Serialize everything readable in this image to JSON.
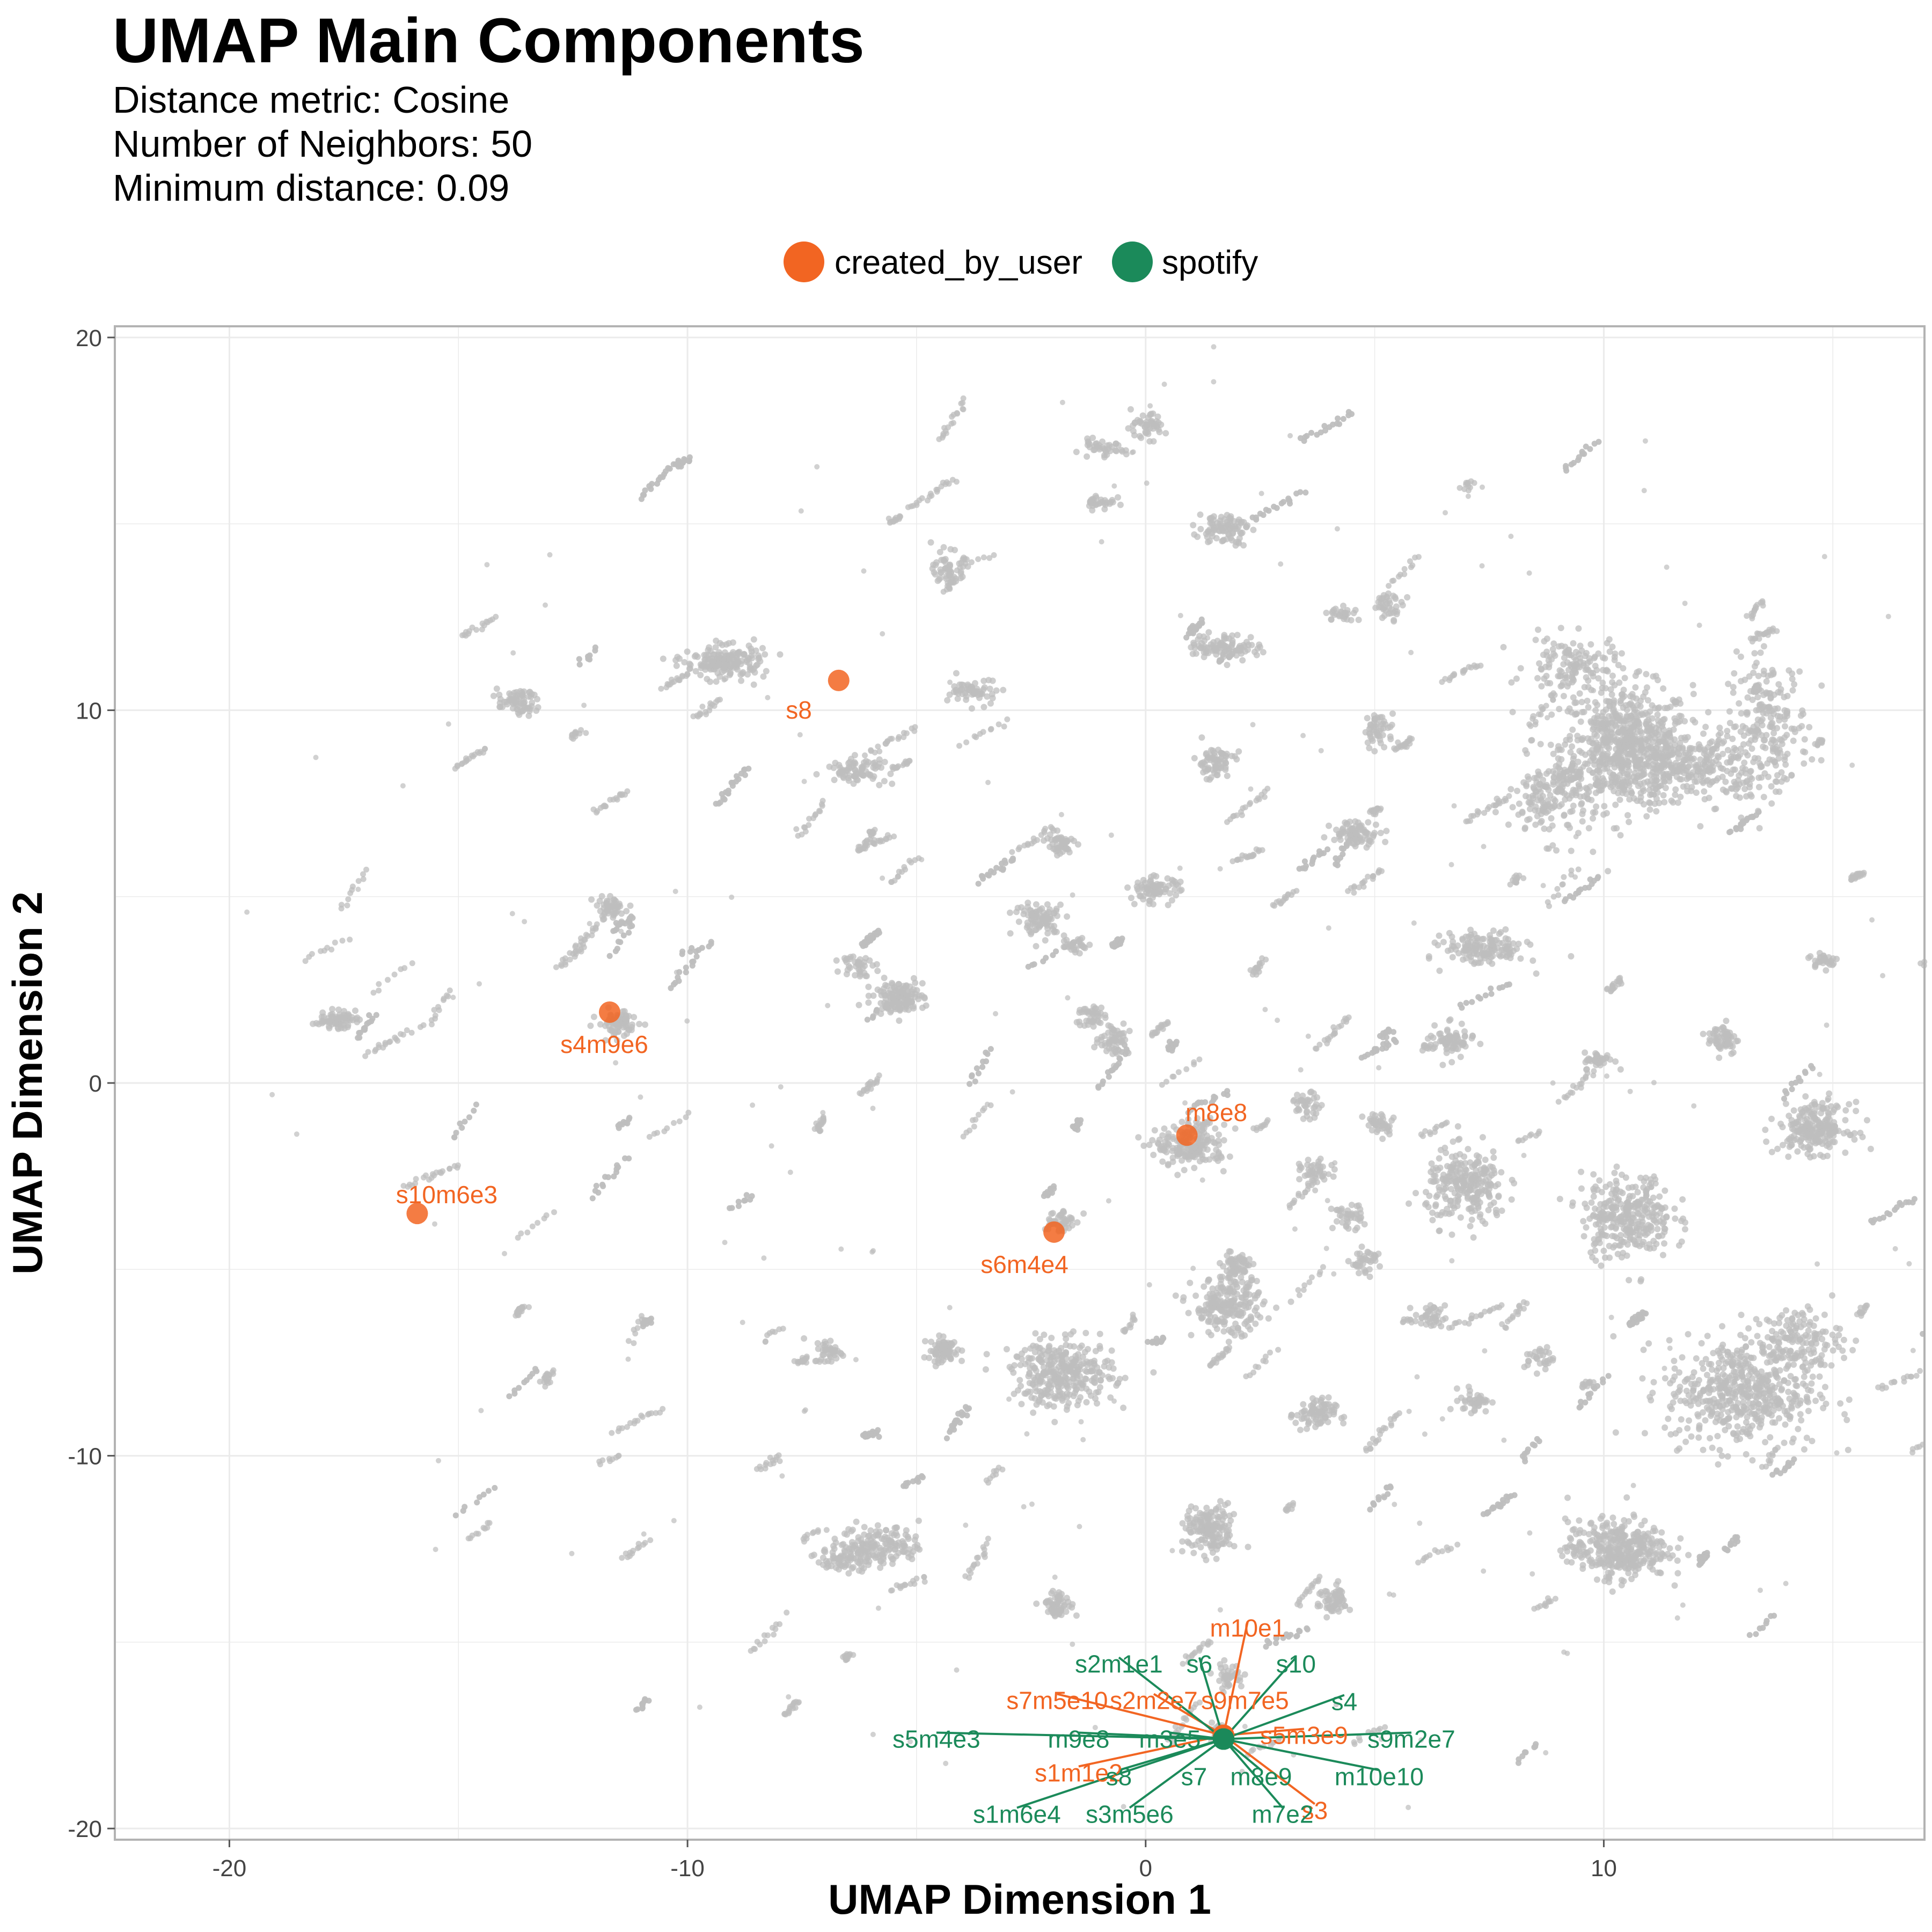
{
  "chart_data": {
    "type": "scatter",
    "title": "UMAP Main Components",
    "subtitle": [
      "Distance metric: Cosine",
      "Number of Neighbors: 50",
      "Minimum distance: 0.09"
    ],
    "xlabel": "UMAP Dimension 1",
    "ylabel": "UMAP Dimension 2",
    "xlim": [
      -22.5,
      17
    ],
    "ylim": [
      -20.3,
      20.3
    ],
    "xticks": [
      -20,
      -10,
      0,
      10
    ],
    "yticks": [
      -20,
      -10,
      0,
      10,
      20
    ],
    "grid": true,
    "legend_position": "top",
    "colors": {
      "created_by_user": "#F26522",
      "spotify": "#1B8A5A",
      "background": "#BDBDBD",
      "grid": "#EBEBEB",
      "frame": "#B3B3B3"
    },
    "legend": [
      {
        "key": "created_by_user",
        "label": "created_by_user"
      },
      {
        "key": "spotify",
        "label": "spotify"
      }
    ],
    "background_points": "all tracks (grey, unlabeled)",
    "series": [
      {
        "name": "created_by_user",
        "points": [
          {
            "x": -6.7,
            "y": 10.8,
            "label": "s8"
          },
          {
            "x": -11.7,
            "y": 1.9,
            "label": "s4m9e6"
          },
          {
            "x": 0.9,
            "y": -1.4,
            "label": "m8e8"
          },
          {
            "x": -15.9,
            "y": -3.5,
            "label": "s10m6e3"
          },
          {
            "x": -2.0,
            "y": -4.0,
            "label": "s6m4e4"
          },
          {
            "x": 1.7,
            "y": -17.5,
            "label": "m10e1"
          },
          {
            "x": 1.7,
            "y": -17.5,
            "label": "s9m7e5"
          },
          {
            "x": 1.7,
            "y": -17.5,
            "label": "s7m5e10"
          },
          {
            "x": 1.7,
            "y": -17.5,
            "label": "s2m2e7"
          },
          {
            "x": 1.7,
            "y": -17.5,
            "label": "s5m3e9"
          },
          {
            "x": 1.7,
            "y": -17.5,
            "label": "s1m1e2"
          },
          {
            "x": 1.7,
            "y": -17.5,
            "label": "s3"
          }
        ]
      },
      {
        "name": "spotify",
        "points": [
          {
            "x": 1.7,
            "y": -17.6,
            "label": "s2m1e1"
          },
          {
            "x": 1.7,
            "y": -17.6,
            "label": "s6"
          },
          {
            "x": 1.7,
            "y": -17.6,
            "label": "s10"
          },
          {
            "x": 1.7,
            "y": -17.6,
            "label": "s4"
          },
          {
            "x": 1.7,
            "y": -17.6,
            "label": "s5m4e3"
          },
          {
            "x": 1.7,
            "y": -17.6,
            "label": "m9e8"
          },
          {
            "x": 1.7,
            "y": -17.6,
            "label": "m3e5"
          },
          {
            "x": 1.7,
            "y": -17.6,
            "label": "s9m2e7"
          },
          {
            "x": 1.7,
            "y": -17.6,
            "label": "s8"
          },
          {
            "x": 1.7,
            "y": -17.6,
            "label": "s7"
          },
          {
            "x": 1.7,
            "y": -17.6,
            "label": "m8e9"
          },
          {
            "x": 1.7,
            "y": -17.6,
            "label": "m10e10"
          },
          {
            "x": 1.7,
            "y": -17.6,
            "label": "s1m6e4"
          },
          {
            "x": 1.7,
            "y": -17.6,
            "label": "s3m5e6"
          },
          {
            "x": 1.7,
            "y": -17.6,
            "label": "m7e2"
          }
        ]
      }
    ],
    "clusters": [
      {
        "x": 10.5,
        "y": 9.0,
        "sx": 1.3,
        "sy": 1.5,
        "n": 700
      },
      {
        "x": 12.0,
        "y": 8.5,
        "sx": 1.5,
        "sy": 0.8,
        "n": 250
      },
      {
        "x": 13.6,
        "y": 9.6,
        "sx": 0.8,
        "sy": 1.6,
        "n": 200
      },
      {
        "x": 8.8,
        "y": 7.6,
        "sx": 0.8,
        "sy": 1.0,
        "n": 150
      },
      {
        "x": 9.3,
        "y": 11.2,
        "sx": 0.9,
        "sy": 0.7,
        "n": 130
      },
      {
        "x": 13.0,
        "y": -8.3,
        "sx": 1.5,
        "sy": 1.3,
        "n": 500
      },
      {
        "x": 14.2,
        "y": -6.9,
        "sx": 0.9,
        "sy": 0.8,
        "n": 150
      },
      {
        "x": 10.3,
        "y": -12.5,
        "sx": 1.0,
        "sy": 0.7,
        "n": 350
      },
      {
        "x": 10.5,
        "y": -3.6,
        "sx": 0.9,
        "sy": 1.0,
        "n": 300
      },
      {
        "x": 7.0,
        "y": -2.8,
        "sx": 0.8,
        "sy": 0.9,
        "n": 250
      },
      {
        "x": 14.6,
        "y": -1.2,
        "sx": 0.7,
        "sy": 0.6,
        "n": 220
      },
      {
        "x": 7.4,
        "y": 3.6,
        "sx": 0.8,
        "sy": 0.4,
        "n": 150
      },
      {
        "x": 6.6,
        "y": 1.1,
        "sx": 0.5,
        "sy": 0.4,
        "n": 80
      },
      {
        "x": 5.1,
        "y": -1.1,
        "sx": 0.3,
        "sy": 0.3,
        "n": 40
      },
      {
        "x": 4.4,
        "y": -3.6,
        "sx": 0.3,
        "sy": 0.3,
        "n": 40
      },
      {
        "x": 4.8,
        "y": -4.8,
        "sx": 0.3,
        "sy": 0.3,
        "n": 40
      },
      {
        "x": 3.7,
        "y": -2.4,
        "sx": 0.3,
        "sy": 0.3,
        "n": 40
      },
      {
        "x": 3.5,
        "y": -0.6,
        "sx": 0.3,
        "sy": 0.3,
        "n": 40
      },
      {
        "x": 4.6,
        "y": 6.7,
        "sx": 0.5,
        "sy": 0.3,
        "n": 80
      },
      {
        "x": 5.1,
        "y": 9.5,
        "sx": 0.3,
        "sy": 0.4,
        "n": 50
      },
      {
        "x": 5.3,
        "y": 12.8,
        "sx": 0.3,
        "sy": 0.3,
        "n": 40
      },
      {
        "x": 4.3,
        "y": 12.6,
        "sx": 0.3,
        "sy": 0.2,
        "n": 30
      },
      {
        "x": 1.7,
        "y": 11.7,
        "sx": 0.7,
        "sy": 0.3,
        "n": 90
      },
      {
        "x": 1.7,
        "y": 14.9,
        "sx": 0.5,
        "sy": 0.4,
        "n": 90
      },
      {
        "x": 1.5,
        "y": 8.6,
        "sx": 0.4,
        "sy": 0.4,
        "n": 70
      },
      {
        "x": 0.0,
        "y": 17.6,
        "sx": 0.4,
        "sy": 0.3,
        "n": 50
      },
      {
        "x": -1.0,
        "y": 17.0,
        "sx": 0.5,
        "sy": 0.2,
        "n": 40
      },
      {
        "x": 0.2,
        "y": 5.2,
        "sx": 0.5,
        "sy": 0.3,
        "n": 80
      },
      {
        "x": -2.3,
        "y": 4.4,
        "sx": 0.5,
        "sy": 0.4,
        "n": 90
      },
      {
        "x": -1.5,
        "y": 3.7,
        "sx": 0.3,
        "sy": 0.2,
        "n": 30
      },
      {
        "x": -0.7,
        "y": 1.2,
        "sx": 0.3,
        "sy": 0.4,
        "n": 60
      },
      {
        "x": 1.0,
        "y": -1.7,
        "sx": 0.7,
        "sy": 0.5,
        "n": 180
      },
      {
        "x": 1.8,
        "y": -6.0,
        "sx": 0.7,
        "sy": 0.7,
        "n": 220
      },
      {
        "x": 2.0,
        "y": -4.9,
        "sx": 0.3,
        "sy": 0.4,
        "n": 60
      },
      {
        "x": -1.8,
        "y": -7.8,
        "sx": 1.0,
        "sy": 0.8,
        "n": 320
      },
      {
        "x": -4.4,
        "y": -7.2,
        "sx": 0.4,
        "sy": 0.3,
        "n": 60
      },
      {
        "x": -5.4,
        "y": 2.3,
        "sx": 0.5,
        "sy": 0.4,
        "n": 130
      },
      {
        "x": -6.3,
        "y": 3.2,
        "sx": 0.3,
        "sy": 0.3,
        "n": 40
      },
      {
        "x": -1.9,
        "y": -3.7,
        "sx": 0.3,
        "sy": 0.3,
        "n": 50
      },
      {
        "x": -1.9,
        "y": 6.4,
        "sx": 0.3,
        "sy": 0.3,
        "n": 50
      },
      {
        "x": -1.2,
        "y": 1.8,
        "sx": 0.3,
        "sy": 0.3,
        "n": 40
      },
      {
        "x": -3.7,
        "y": 10.5,
        "sx": 0.5,
        "sy": 0.3,
        "n": 60
      },
      {
        "x": -4.3,
        "y": 13.8,
        "sx": 0.3,
        "sy": 0.4,
        "n": 50
      },
      {
        "x": -9.2,
        "y": 11.3,
        "sx": 0.8,
        "sy": 0.4,
        "n": 180
      },
      {
        "x": -6.3,
        "y": 8.4,
        "sx": 0.6,
        "sy": 0.3,
        "n": 80
      },
      {
        "x": -11.5,
        "y": 1.6,
        "sx": 0.4,
        "sy": 0.3,
        "n": 80
      },
      {
        "x": -11.7,
        "y": 4.7,
        "sx": 0.3,
        "sy": 0.3,
        "n": 50
      },
      {
        "x": -13.7,
        "y": 10.2,
        "sx": 0.4,
        "sy": 0.3,
        "n": 70
      },
      {
        "x": -17.7,
        "y": 1.7,
        "sx": 0.4,
        "sy": 0.2,
        "n": 70
      },
      {
        "x": -5.8,
        "y": -12.4,
        "sx": 0.8,
        "sy": 0.5,
        "n": 160
      },
      {
        "x": -6.6,
        "y": -12.8,
        "sx": 0.5,
        "sy": 0.3,
        "n": 60
      },
      {
        "x": -1.9,
        "y": -14.0,
        "sx": 0.3,
        "sy": 0.3,
        "n": 60
      },
      {
        "x": 1.4,
        "y": -12.0,
        "sx": 0.5,
        "sy": 0.6,
        "n": 150
      },
      {
        "x": 4.1,
        "y": -13.9,
        "sx": 0.3,
        "sy": 0.4,
        "n": 60
      },
      {
        "x": 3.7,
        "y": -8.9,
        "sx": 0.4,
        "sy": 0.4,
        "n": 80
      },
      {
        "x": 6.2,
        "y": -6.3,
        "sx": 0.3,
        "sy": 0.3,
        "n": 40
      },
      {
        "x": 7.2,
        "y": -8.5,
        "sx": 0.3,
        "sy": 0.3,
        "n": 40
      },
      {
        "x": 8.6,
        "y": -7.4,
        "sx": 0.3,
        "sy": 0.3,
        "n": 30
      },
      {
        "x": 12.6,
        "y": 1.2,
        "sx": 0.3,
        "sy": 0.4,
        "n": 60
      },
      {
        "x": 14.8,
        "y": 3.3,
        "sx": 0.3,
        "sy": 0.2,
        "n": 30
      },
      {
        "x": 9.9,
        "y": 0.6,
        "sx": 0.3,
        "sy": 0.2,
        "n": 40
      },
      {
        "x": -6.9,
        "y": -7.2,
        "sx": 0.3,
        "sy": 0.3,
        "n": 40
      },
      {
        "x": -1.0,
        "y": 15.6,
        "sx": 0.3,
        "sy": 0.2,
        "n": 30
      },
      {
        "x": 1.8,
        "y": -15.9,
        "sx": 0.3,
        "sy": 0.3,
        "n": 40
      },
      {
        "x": 1.6,
        "y": -17.4,
        "sx": 0.2,
        "sy": 0.2,
        "n": 40
      }
    ]
  }
}
